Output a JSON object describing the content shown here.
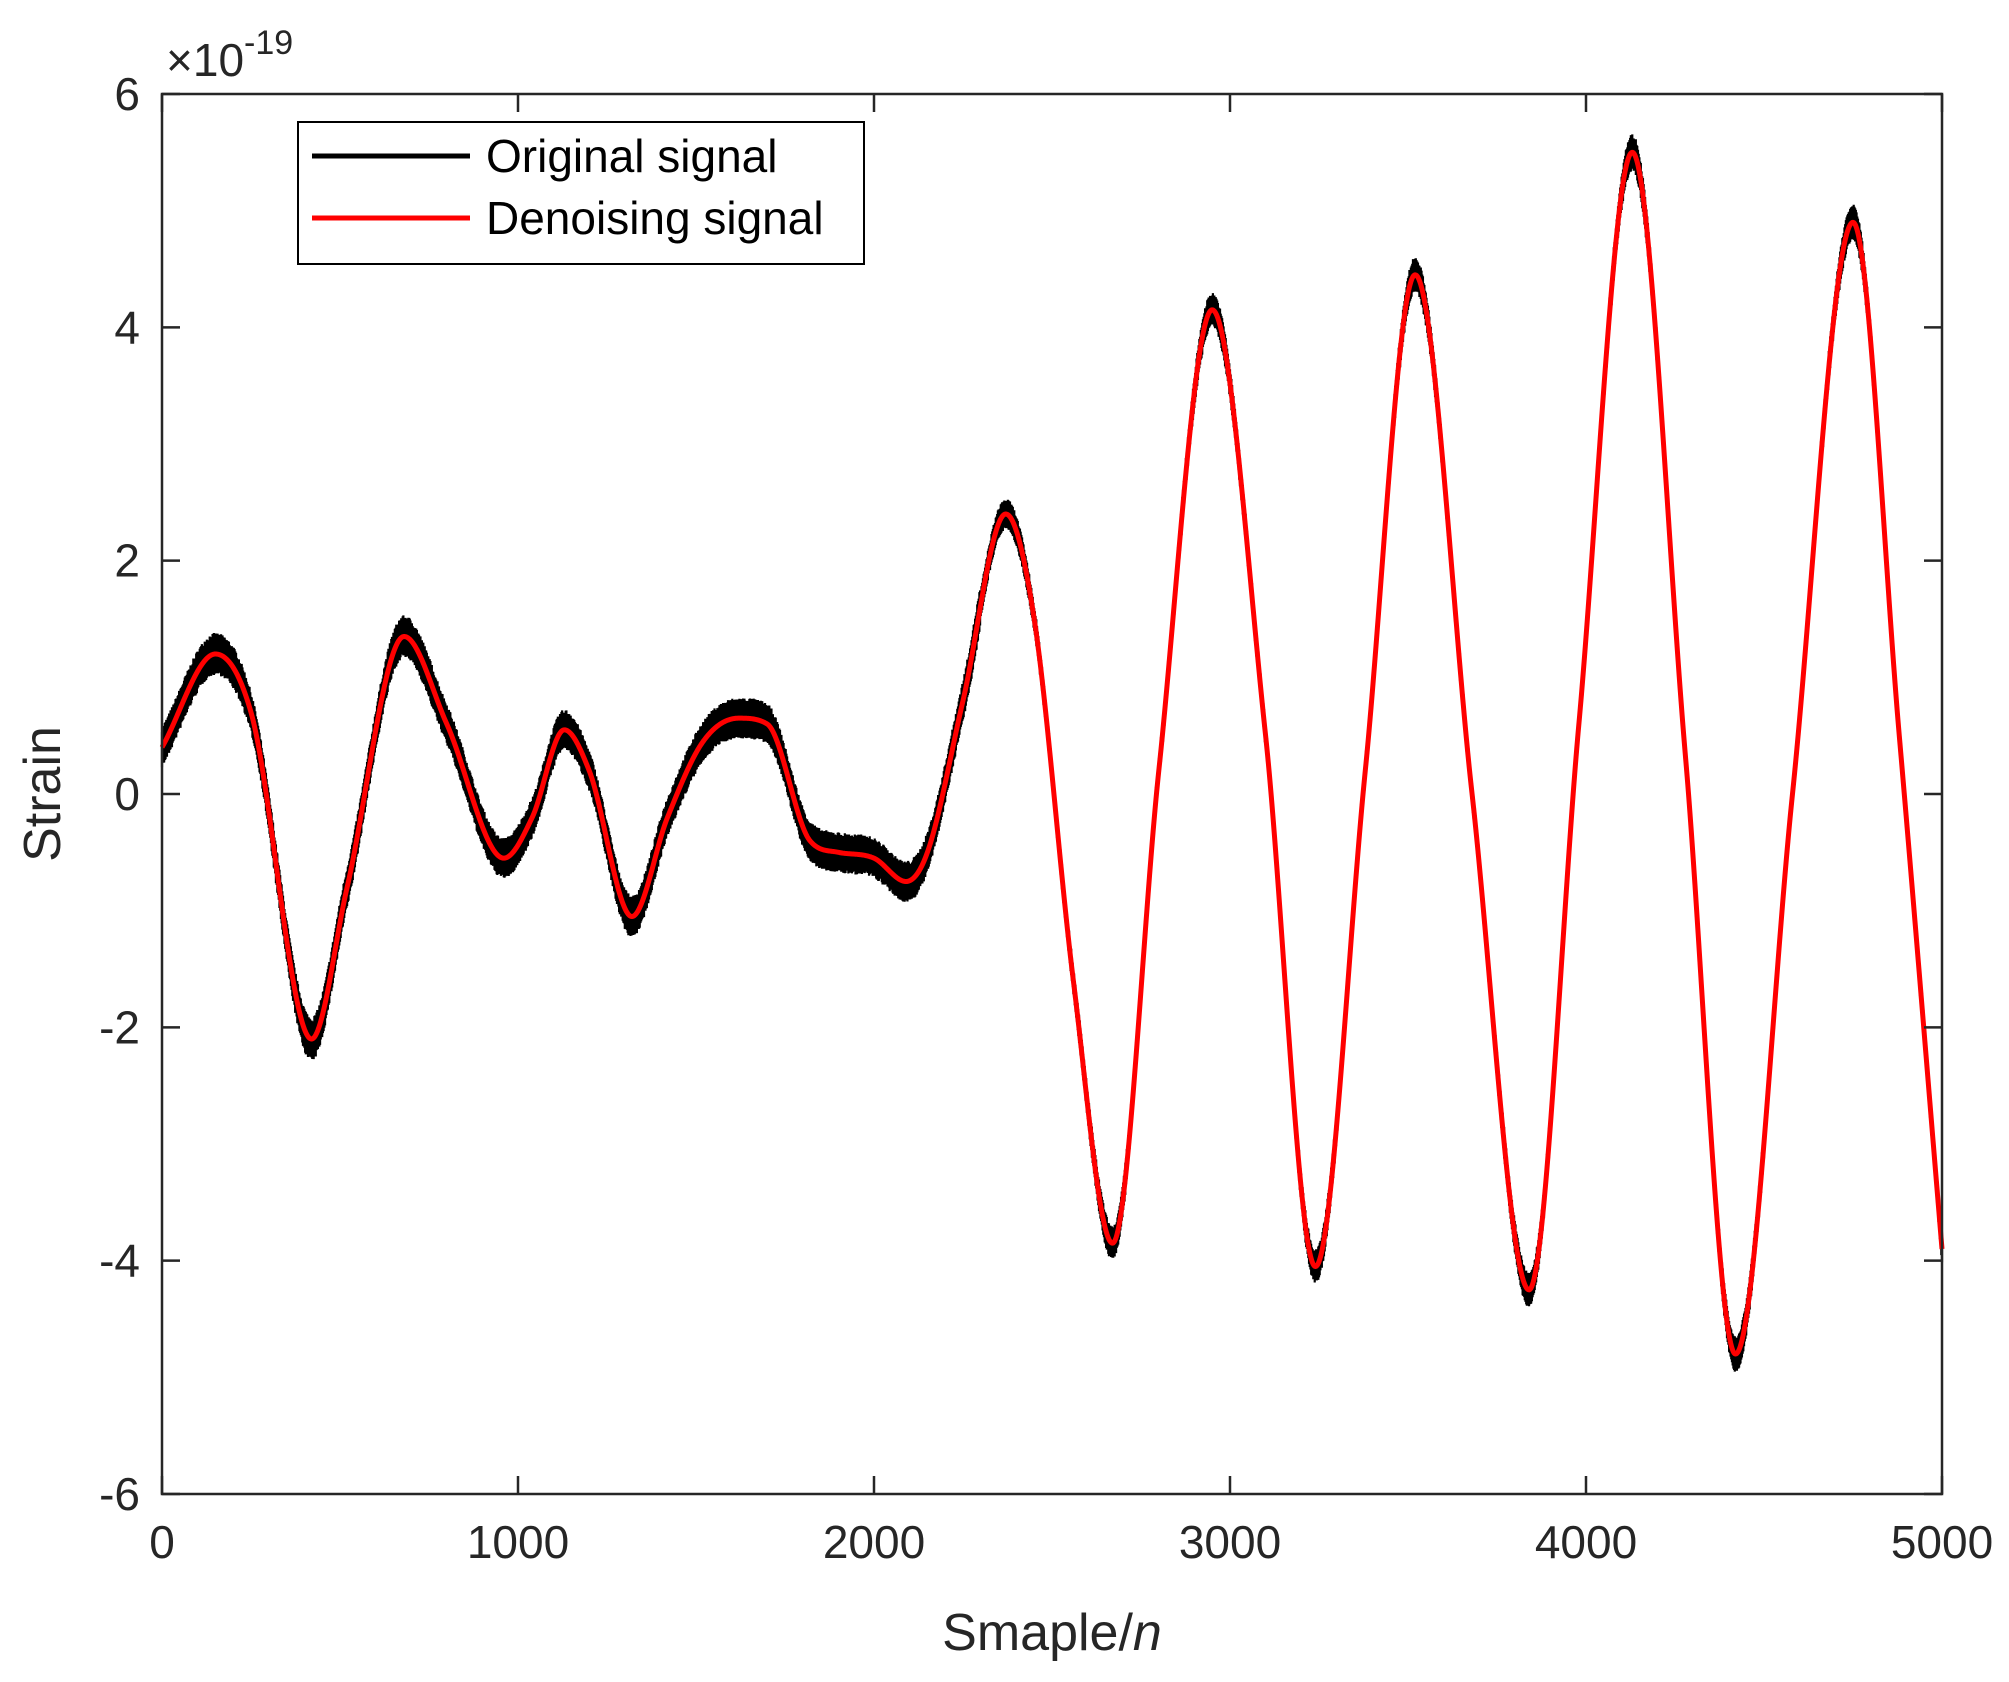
{
  "chart_data": {
    "type": "line",
    "title": "",
    "xlabel_prefix": "Smaple/",
    "xlabel_italic": "n",
    "ylabel": "Strain",
    "y_multiplier": {
      "base": "×10",
      "exponent": "-19"
    },
    "xlim": [
      0,
      5000
    ],
    "ylim": [
      -6,
      6
    ],
    "xticks": [
      0,
      1000,
      2000,
      3000,
      4000,
      5000
    ],
    "xtick_labels": [
      "0",
      "1000",
      "2000",
      "3000",
      "4000",
      "5000"
    ],
    "yticks": [
      -6,
      -4,
      -2,
      0,
      2,
      4,
      6
    ],
    "ytick_labels": [
      "-6",
      "-4",
      "-2",
      "0",
      "2",
      "4",
      "6"
    ],
    "grid": false,
    "legend_position": "top-left",
    "series": [
      {
        "name": "Original signal",
        "color": "#000000",
        "noise_band": true,
        "points": [
          [
            0,
            0.4
          ],
          [
            150,
            1.2
          ],
          [
            250,
            0.7
          ],
          [
            420,
            -2.1
          ],
          [
            520,
            -0.8
          ],
          [
            680,
            1.35
          ],
          [
            800,
            0.6
          ],
          [
            960,
            -0.55
          ],
          [
            1040,
            -0.2
          ],
          [
            1130,
            0.55
          ],
          [
            1200,
            0.2
          ],
          [
            1320,
            -1.05
          ],
          [
            1420,
            -0.2
          ],
          [
            1520,
            0.45
          ],
          [
            1620,
            0.65
          ],
          [
            1700,
            0.6
          ],
          [
            1820,
            -0.4
          ],
          [
            1900,
            -0.5
          ],
          [
            2000,
            -0.55
          ],
          [
            2090,
            -0.75
          ],
          [
            2150,
            -0.5
          ],
          [
            2250,
            0.8
          ],
          [
            2370,
            2.4
          ],
          [
            2450,
            1.5
          ],
          [
            2560,
            -1.6
          ],
          [
            2670,
            -3.85
          ],
          [
            2800,
            0.2
          ],
          [
            2950,
            4.15
          ],
          [
            3100,
            0.5
          ],
          [
            3240,
            -4.05
          ],
          [
            3380,
            0.2
          ],
          [
            3520,
            4.45
          ],
          [
            3680,
            0.0
          ],
          [
            3840,
            -4.25
          ],
          [
            3980,
            0.6
          ],
          [
            4130,
            5.5
          ],
          [
            4280,
            0.3
          ],
          [
            4420,
            -4.8
          ],
          [
            4580,
            0.0
          ],
          [
            4750,
            4.9
          ],
          [
            4880,
            0.5
          ],
          [
            5000,
            -3.9
          ]
        ]
      },
      {
        "name": "Denoising signal",
        "color": "#ff0000",
        "noise_band": false,
        "points": [
          [
            0,
            0.4
          ],
          [
            150,
            1.2
          ],
          [
            250,
            0.7
          ],
          [
            420,
            -2.1
          ],
          [
            520,
            -0.8
          ],
          [
            680,
            1.35
          ],
          [
            800,
            0.6
          ],
          [
            960,
            -0.55
          ],
          [
            1040,
            -0.2
          ],
          [
            1130,
            0.55
          ],
          [
            1200,
            0.2
          ],
          [
            1320,
            -1.05
          ],
          [
            1420,
            -0.2
          ],
          [
            1520,
            0.45
          ],
          [
            1620,
            0.65
          ],
          [
            1700,
            0.6
          ],
          [
            1820,
            -0.4
          ],
          [
            1900,
            -0.5
          ],
          [
            2000,
            -0.55
          ],
          [
            2090,
            -0.75
          ],
          [
            2150,
            -0.5
          ],
          [
            2250,
            0.8
          ],
          [
            2370,
            2.4
          ],
          [
            2450,
            1.5
          ],
          [
            2560,
            -1.6
          ],
          [
            2670,
            -3.85
          ],
          [
            2800,
            0.2
          ],
          [
            2950,
            4.15
          ],
          [
            3100,
            0.5
          ],
          [
            3240,
            -4.05
          ],
          [
            3380,
            0.2
          ],
          [
            3520,
            4.45
          ],
          [
            3680,
            0.0
          ],
          [
            3840,
            -4.25
          ],
          [
            3980,
            0.6
          ],
          [
            4130,
            5.5
          ],
          [
            4280,
            0.3
          ],
          [
            4420,
            -4.8
          ],
          [
            4580,
            0.0
          ],
          [
            4750,
            4.9
          ],
          [
            4880,
            0.5
          ],
          [
            5000,
            -3.9
          ]
        ]
      }
    ]
  }
}
